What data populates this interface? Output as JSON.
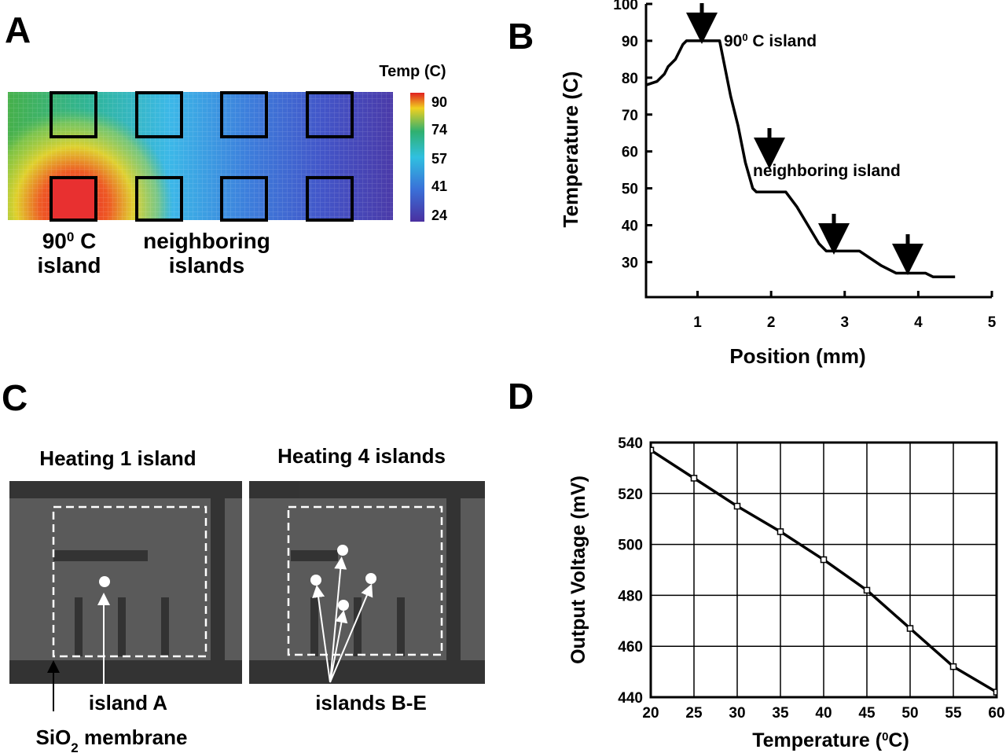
{
  "chart_data": [
    {
      "type": "heatmap",
      "panel": "A",
      "colorbar_title": "Temp (C)",
      "colorbar_ticks": [
        90,
        74,
        57,
        41,
        24
      ],
      "hot_label": [
        "90",
        "0",
        " C"
      ],
      "hot_label_line2": "island",
      "neighbor_label": "neighboring",
      "neighbor_label_line2": "islands"
    },
    {
      "type": "line",
      "panel": "B",
      "xlabel": "Position (mm)",
      "ylabel": "Temperature (C)",
      "x": [
        0.3,
        0.45,
        0.55,
        0.6,
        0.7,
        0.8,
        0.85,
        1.3,
        1.35,
        1.45,
        1.55,
        1.65,
        1.75,
        1.8,
        2.2,
        2.35,
        2.5,
        2.65,
        2.75,
        3.2,
        3.35,
        3.5,
        3.7,
        4.1,
        4.2,
        4.5
      ],
      "series": [
        {
          "color": "#000000",
          "values": [
            78,
            79,
            81,
            83,
            85,
            89,
            90,
            90,
            85,
            75,
            67,
            57,
            50,
            49,
            49,
            45,
            40,
            35,
            33,
            33,
            31,
            29,
            27,
            27,
            26,
            26
          ]
        }
      ],
      "xlim": [
        0.3,
        5
      ],
      "ylim": [
        20.5,
        100
      ],
      "xticks": [
        1,
        2,
        3,
        4,
        5
      ],
      "yticks": [
        30,
        40,
        50,
        60,
        70,
        80,
        90,
        100
      ],
      "grid": false,
      "annotation_hot": [
        "90",
        "0",
        " C island"
      ],
      "annotation_neighbor": "neighboring island"
    },
    {
      "type": "image",
      "panel": "C",
      "titles": [
        "Heating 1 island",
        "Heating 4 islands"
      ],
      "labels": [
        "island A",
        "islands B-E"
      ],
      "membrane_label": [
        "SiO",
        "2",
        " membrane"
      ]
    },
    {
      "type": "line",
      "panel": "D",
      "xlabel": [
        "Temperature (",
        "0",
        "C)"
      ],
      "ylabel": "Output Voltage (mV)",
      "x": [
        20,
        25,
        30,
        35,
        40,
        45,
        50,
        55,
        60
      ],
      "series": [
        {
          "color": "#000000",
          "marker": "square",
          "values": [
            537,
            526,
            515,
            505,
            494,
            482,
            467,
            452,
            442
          ]
        }
      ],
      "xlim": [
        20,
        60
      ],
      "ylim": [
        440,
        540
      ],
      "xticks": [
        20,
        25,
        30,
        35,
        40,
        45,
        50,
        55,
        60
      ],
      "yticks": [
        440,
        460,
        480,
        500,
        520,
        540
      ],
      "grid": true
    }
  ]
}
